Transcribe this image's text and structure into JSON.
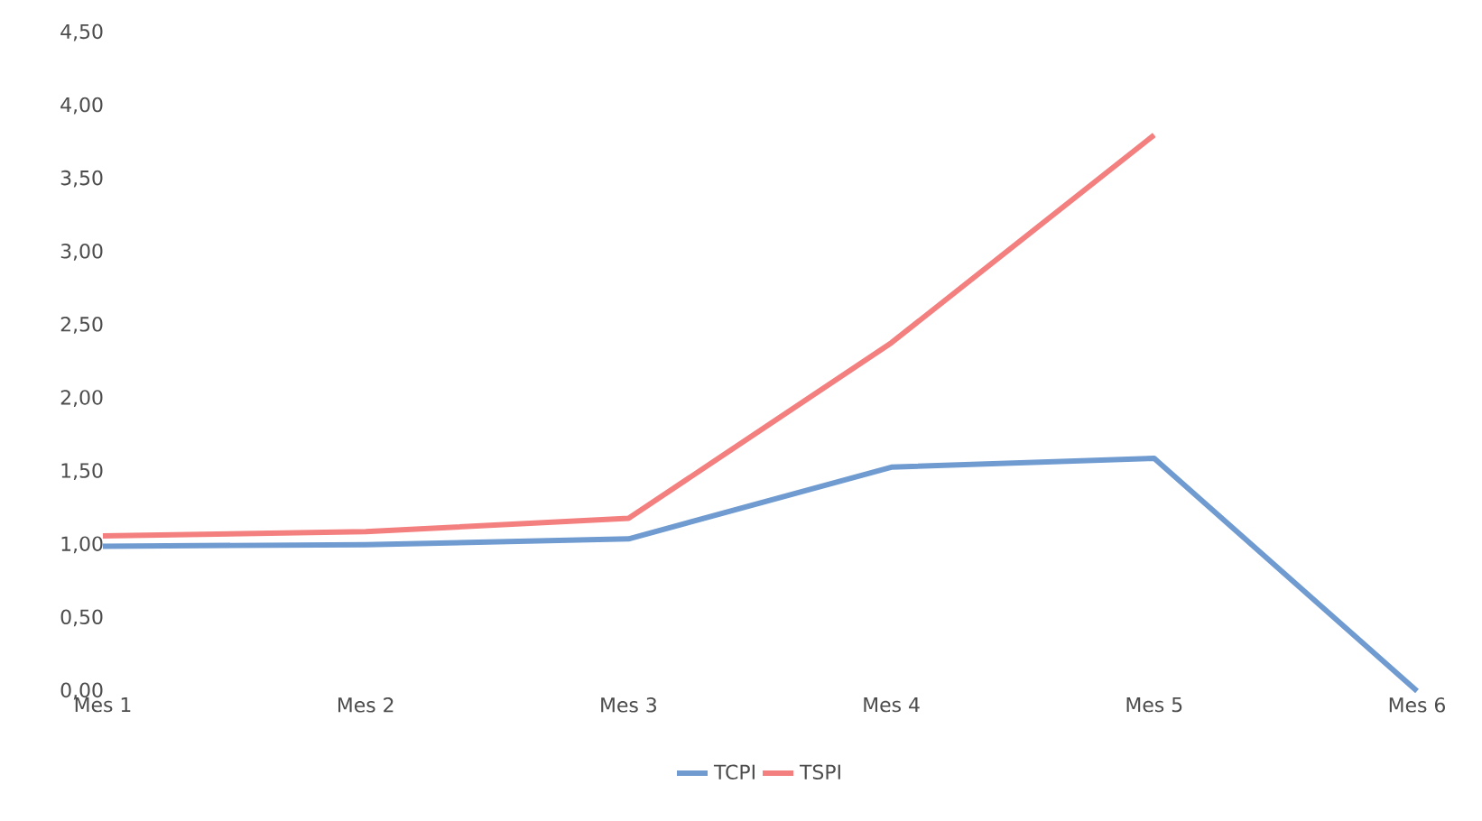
{
  "chart_data": {
    "type": "line",
    "categories": [
      "Mes 1",
      "Mes 2",
      "Mes 3",
      "Mes 4",
      "Mes 5",
      "Mes 6"
    ],
    "series": [
      {
        "name": "TCPI",
        "color": "#6f9bd1",
        "values": [
          0.99,
          1.0,
          1.04,
          1.53,
          1.59,
          0.0
        ]
      },
      {
        "name": "TSPI",
        "color": "#f47f7f",
        "values": [
          1.06,
          1.09,
          1.18,
          2.38,
          3.8,
          null
        ]
      }
    ],
    "ylim": [
      0,
      4.5
    ],
    "yticks": [
      {
        "value": 0,
        "label": "0,00"
      },
      {
        "value": 0.5,
        "label": "0,50"
      },
      {
        "value": 1,
        "label": "1,00"
      },
      {
        "value": 1.5,
        "label": "1,50"
      },
      {
        "value": 2,
        "label": "2,00"
      },
      {
        "value": 2.5,
        "label": "2,50"
      },
      {
        "value": 3,
        "label": "3,00"
      },
      {
        "value": 3.5,
        "label": "3,50"
      },
      {
        "value": 4,
        "label": "4,00"
      },
      {
        "value": 4.5,
        "label": "4,50"
      }
    ],
    "grid": false,
    "legend": "bottom",
    "marker": "none",
    "line_style": "solid"
  }
}
